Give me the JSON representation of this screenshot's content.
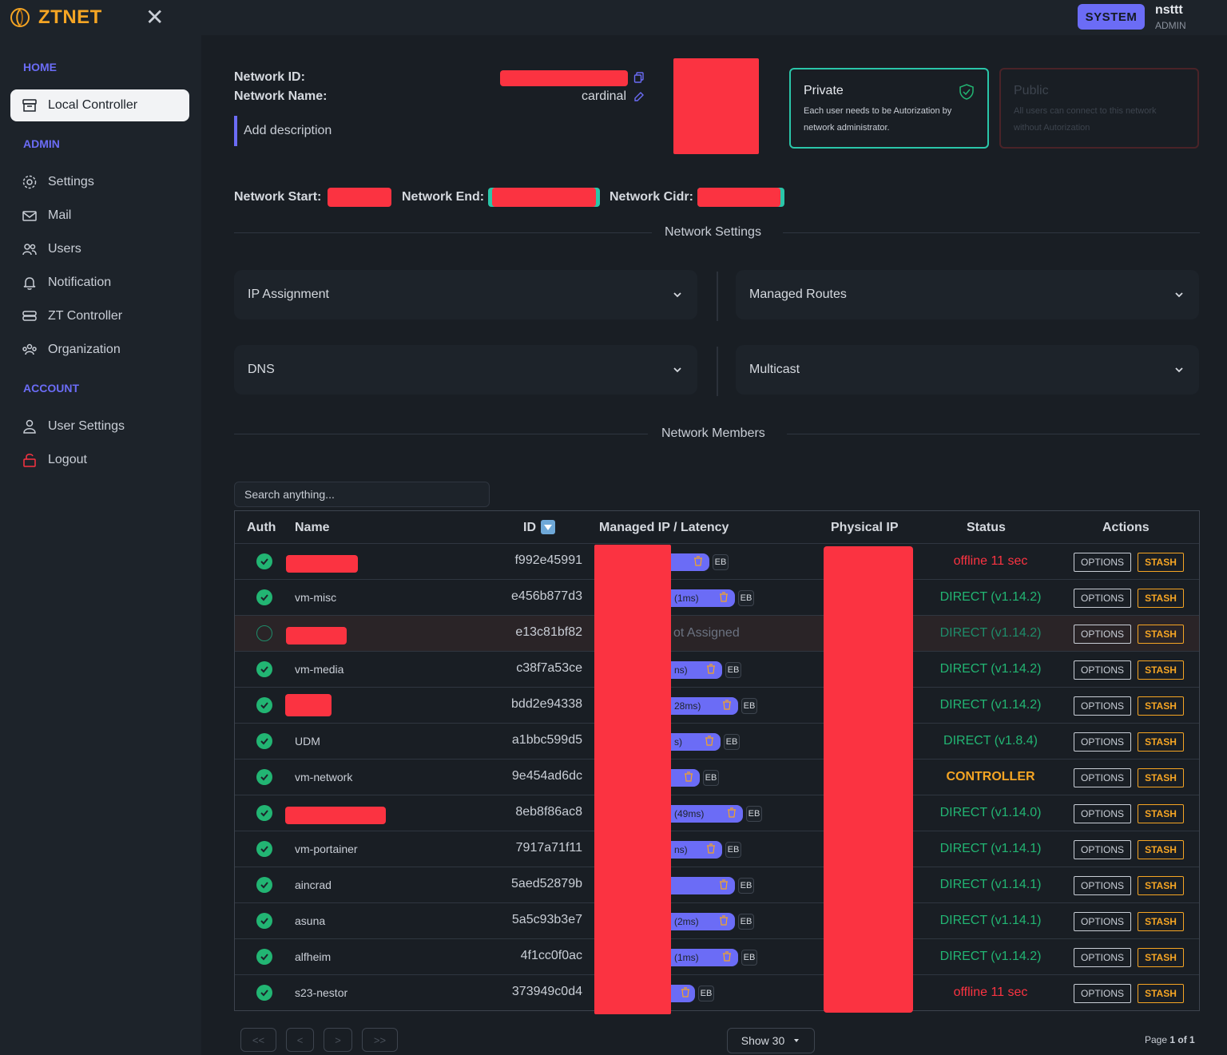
{
  "app": {
    "logo_text": "ZTNET",
    "system_label": "SYSTEM",
    "user_name": "nsttt",
    "user_role": "ADMIN"
  },
  "sidebar": {
    "home_label": "HOME",
    "local_controller": "Local Controller",
    "admin_label": "ADMIN",
    "admin_items": [
      "Settings",
      "Mail",
      "Users",
      "Notification",
      "ZT Controller",
      "Organization"
    ],
    "account_label": "ACCOUNT",
    "account_items": [
      "User Settings",
      "Logout"
    ]
  },
  "network": {
    "id_label": "Network ID:",
    "name_label": "Network Name:",
    "name_value": "cardinal",
    "description_placeholder": "Add description",
    "start_label": "Network Start:",
    "end_label": "Network End:",
    "cidr_label": "Network Cidr:"
  },
  "private_card": {
    "title": "Private",
    "desc": "Each user needs to be Autorization by network administrator."
  },
  "public_card": {
    "title": "Public",
    "desc": "All users can connect to this network without Autorization"
  },
  "settings": {
    "title": "Network Settings",
    "ip_assignment": "IP Assignment",
    "managed_routes": "Managed Routes",
    "dns": "DNS",
    "multicast": "Multicast"
  },
  "members": {
    "title": "Network Members",
    "search_placeholder": "Search anything...",
    "headers": {
      "auth": "Auth",
      "name": "Name",
      "id": "ID",
      "managed_ip": "Managed IP / Latency",
      "physical_ip": "Physical IP",
      "status": "Status",
      "actions": "Actions"
    },
    "options_label": "OPTIONS",
    "stash_label": "STASH",
    "eb_label": "EB",
    "rows": [
      {
        "auth": true,
        "name": "",
        "redacted_name": true,
        "id": "f992e45991",
        "latency": "",
        "status": "offline 11 sec",
        "status_type": "offline"
      },
      {
        "auth": true,
        "name": "vm-misc",
        "redacted_name": false,
        "id": "e456b877d3",
        "latency": "(1ms)",
        "status": "DIRECT (v1.14.2)",
        "status_type": "direct"
      },
      {
        "auth": false,
        "name": "",
        "redacted_name": true,
        "id": "e13c81bf82",
        "latency": "ot Assigned",
        "status": "DIRECT (v1.14.2)",
        "status_type": "direct-dim"
      },
      {
        "auth": true,
        "name": "vm-media",
        "redacted_name": false,
        "id": "c38f7a53ce",
        "latency": "ns)",
        "status": "DIRECT (v1.14.2)",
        "status_type": "direct"
      },
      {
        "auth": true,
        "name": "",
        "redacted_name": true,
        "id": "bdd2e94338",
        "latency": "28ms)",
        "status": "DIRECT (v1.14.2)",
        "status_type": "direct"
      },
      {
        "auth": true,
        "name": "UDM",
        "redacted_name": false,
        "id": "a1bbc599d5",
        "latency": "s)",
        "status": "DIRECT (v1.8.4)",
        "status_type": "direct"
      },
      {
        "auth": true,
        "name": "vm-network",
        "redacted_name": false,
        "id": "9e454ad6dc",
        "latency": "",
        "status": "CONTROLLER",
        "status_type": "controller"
      },
      {
        "auth": true,
        "name": "",
        "redacted_name": true,
        "id": "8eb8f86ac8",
        "latency": "(49ms)",
        "status": "DIRECT (v1.14.0)",
        "status_type": "direct"
      },
      {
        "auth": true,
        "name": "vm-portainer",
        "redacted_name": false,
        "id": "7917a71f11",
        "latency": "ns)",
        "status": "DIRECT (v1.14.1)",
        "status_type": "direct"
      },
      {
        "auth": true,
        "name": "aincrad",
        "redacted_name": false,
        "id": "5aed52879b",
        "latency": "",
        "status": "DIRECT (v1.14.1)",
        "status_type": "direct"
      },
      {
        "auth": true,
        "name": "asuna",
        "redacted_name": false,
        "id": "5a5c93b3e7",
        "latency": "(2ms)",
        "status": "DIRECT (v1.14.1)",
        "status_type": "direct"
      },
      {
        "auth": true,
        "name": "alfheim",
        "redacted_name": false,
        "id": "4f1cc0f0ac",
        "latency": "(1ms)",
        "status": "DIRECT (v1.14.2)",
        "status_type": "direct"
      },
      {
        "auth": true,
        "name": "s23-nestor",
        "redacted_name": false,
        "id": "373949c0d4",
        "latency": "",
        "status": "offline 11 sec",
        "status_type": "offline"
      }
    ]
  },
  "pagination": {
    "first": "<<",
    "prev": "<",
    "next": ">",
    "last": ">>",
    "show_label": "Show 30",
    "page_prefix": "Page ",
    "page_value": "1 of 1"
  },
  "colors": {
    "accent": "#6b6cf6",
    "orange": "#f5a524",
    "green": "#22b573",
    "red": "#fb3341",
    "teal": "#2ac6a9"
  }
}
